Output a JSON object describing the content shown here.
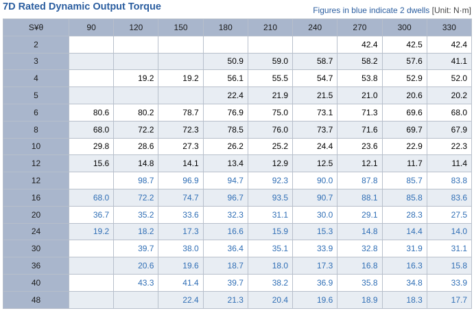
{
  "header": {
    "title": "7D Rated Dynamic Output Torque",
    "note": "Figures in blue indicate 2 dwells",
    "unit": "[Unit: N·m]"
  },
  "table": {
    "corner": "S¥θ",
    "columns": [
      "90",
      "120",
      "150",
      "180",
      "210",
      "240",
      "270",
      "300",
      "330"
    ],
    "rows": [
      {
        "s": "2",
        "color": "black",
        "values": [
          "",
          "",
          "",
          "",
          "",
          "",
          "42.4",
          "42.5",
          "42.4"
        ]
      },
      {
        "s": "3",
        "color": "black",
        "values": [
          "",
          "",
          "",
          "50.9",
          "59.0",
          "58.7",
          "58.2",
          "57.6",
          "41.1"
        ]
      },
      {
        "s": "4",
        "color": "black",
        "values": [
          "",
          "19.2",
          "19.2",
          "56.1",
          "55.5",
          "54.7",
          "53.8",
          "52.9",
          "52.0"
        ]
      },
      {
        "s": "5",
        "color": "black",
        "values": [
          "",
          "",
          "",
          "22.4",
          "21.9",
          "21.5",
          "21.0",
          "20.6",
          "20.2"
        ]
      },
      {
        "s": "6",
        "color": "black",
        "values": [
          "80.6",
          "80.2",
          "78.7",
          "76.9",
          "75.0",
          "73.1",
          "71.3",
          "69.6",
          "68.0"
        ]
      },
      {
        "s": "8",
        "color": "black",
        "values": [
          "68.0",
          "72.2",
          "72.3",
          "78.5",
          "76.0",
          "73.7",
          "71.6",
          "69.7",
          "67.9"
        ]
      },
      {
        "s": "10",
        "color": "black",
        "values": [
          "29.8",
          "28.6",
          "27.3",
          "26.2",
          "25.2",
          "24.4",
          "23.6",
          "22.9",
          "22.3"
        ]
      },
      {
        "s": "12",
        "color": "black",
        "values": [
          "15.6",
          "14.8",
          "14.1",
          "13.4",
          "12.9",
          "12.5",
          "12.1",
          "11.7",
          "11.4"
        ]
      },
      {
        "s": "12",
        "color": "blue",
        "values": [
          "",
          "98.7",
          "96.9",
          "94.7",
          "92.3",
          "90.0",
          "87.8",
          "85.7",
          "83.8"
        ]
      },
      {
        "s": "16",
        "color": "blue",
        "values": [
          "68.0",
          "72.2",
          "74.7",
          "96.7",
          "93.5",
          "90.7",
          "88.1",
          "85.8",
          "83.6"
        ]
      },
      {
        "s": "20",
        "color": "blue",
        "values": [
          "36.7",
          "35.2",
          "33.6",
          "32.3",
          "31.1",
          "30.0",
          "29.1",
          "28.3",
          "27.5"
        ]
      },
      {
        "s": "24",
        "color": "blue",
        "values": [
          "19.2",
          "18.2",
          "17.3",
          "16.6",
          "15.9",
          "15.3",
          "14.8",
          "14.4",
          "14.0"
        ]
      },
      {
        "s": "30",
        "color": "blue",
        "values": [
          "",
          "39.7",
          "38.0",
          "36.4",
          "35.1",
          "33.9",
          "32.8",
          "31.9",
          "31.1"
        ]
      },
      {
        "s": "36",
        "color": "blue",
        "values": [
          "",
          "20.6",
          "19.6",
          "18.7",
          "18.0",
          "17.3",
          "16.8",
          "16.3",
          "15.8"
        ]
      },
      {
        "s": "40",
        "color": "blue",
        "values": [
          "",
          "43.3",
          "41.4",
          "39.7",
          "38.2",
          "36.9",
          "35.8",
          "34.8",
          "33.9"
        ]
      },
      {
        "s": "48",
        "color": "blue",
        "values": [
          "",
          "",
          "22.4",
          "21.3",
          "20.4",
          "19.6",
          "18.9",
          "18.3",
          "17.7"
        ]
      }
    ]
  },
  "colors": {
    "title": "#2a5d9f",
    "header_bg": "#a9b6cc",
    "alt_row_bg": "#e8edf3",
    "two_dwell_text": "#2f6eb5"
  }
}
